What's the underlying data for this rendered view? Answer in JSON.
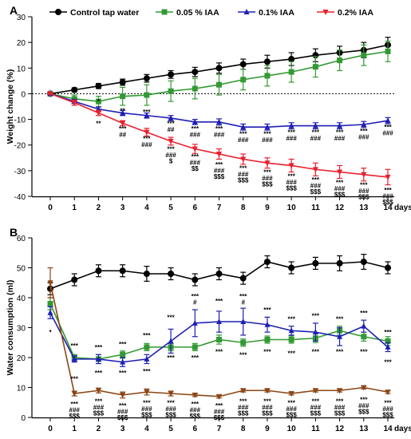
{
  "chart_data": [
    {
      "type": "line",
      "panel_label": "A",
      "title": "",
      "xlabel": "",
      "x_unit_label": "days",
      "ylabel": "Weight change (%)",
      "x": [
        0,
        1,
        2,
        3,
        4,
        5,
        6,
        7,
        8,
        9,
        10,
        11,
        12,
        13,
        14
      ],
      "xlim": [
        0,
        14
      ],
      "ylim": [
        -40,
        30
      ],
      "yticks": [
        -40,
        -30,
        -20,
        -10,
        0,
        10,
        20,
        30
      ],
      "zero_line": "dotted",
      "grid": false,
      "legend_position": "top",
      "series": [
        {
          "name": "Control tap water",
          "color": "#000000",
          "marker": "circle",
          "values": [
            0,
            1.5,
            3,
            4.5,
            6,
            7.5,
            8.5,
            10,
            11.5,
            12.5,
            13.5,
            15,
            16,
            17,
            19
          ],
          "errors": [
            0.5,
            0.8,
            1,
            1.2,
            1.5,
            1.5,
            1.8,
            2,
            2,
            2.5,
            2.5,
            2.5,
            2.5,
            3,
            3
          ]
        },
        {
          "name": "0.05 % IAA",
          "color": "#339933",
          "marker": "square",
          "values": [
            0,
            -2,
            -3,
            -1,
            -0.5,
            1,
            2,
            3.5,
            5.5,
            7,
            8.5,
            10.5,
            13,
            15,
            16.5
          ],
          "errors": [
            0.5,
            1.5,
            2,
            3.5,
            4,
            4,
            4,
            4,
            4,
            4,
            4,
            4,
            4,
            4,
            4
          ]
        },
        {
          "name": "0.1% IAA",
          "color": "#1f1fb4",
          "marker": "triangle",
          "values": [
            0,
            -3,
            -6,
            -7.5,
            -8.5,
            -9.5,
            -11,
            -11,
            -13,
            -13,
            -12.5,
            -12.5,
            -12.5,
            -12,
            -10.5
          ],
          "errors": [
            0.3,
            0.8,
            0.8,
            1,
            1,
            1,
            1,
            1.2,
            1.2,
            1.2,
            1.2,
            1.2,
            1.2,
            1.2,
            1.2
          ]
        },
        {
          "name": "0.2% IAA",
          "color": "#e8212f",
          "marker": "triangle-down",
          "values": [
            0,
            -3.5,
            -7.5,
            -11.5,
            -15,
            -18.5,
            -21.5,
            -23.5,
            -25.5,
            -27,
            -28,
            -29.5,
            -30.5,
            -31.5,
            -32.5
          ],
          "errors": [
            0.3,
            1,
            1,
            1,
            1.5,
            1.5,
            1.8,
            2,
            2,
            2,
            2.5,
            2.5,
            2.5,
            2.5,
            3
          ]
        }
      ],
      "annotations": [
        {
          "x": 2,
          "y": -3,
          "lines": [
            "*"
          ]
        },
        {
          "x": 2,
          "y": -11.5,
          "lines": [
            "**"
          ]
        },
        {
          "x": 3,
          "y": -6.5,
          "lines": [
            "**"
          ]
        },
        {
          "x": 3,
          "y": -13.5,
          "lines": [
            "***",
            "##"
          ]
        },
        {
          "x": 4,
          "y": -7,
          "lines": [
            "***"
          ]
        },
        {
          "x": 4,
          "y": -17.5,
          "lines": [
            "***",
            "###"
          ]
        },
        {
          "x": 5,
          "y": -11.5,
          "lines": [
            "***",
            "##"
          ]
        },
        {
          "x": 5,
          "y": -21.5,
          "lines": [
            "***",
            "###",
            "$"
          ]
        },
        {
          "x": 6,
          "y": -13.5,
          "lines": [
            "***",
            "###"
          ]
        },
        {
          "x": 6,
          "y": -24.5,
          "lines": [
            "***",
            "###",
            "$$"
          ]
        },
        {
          "x": 7,
          "y": -13.5,
          "lines": [
            "***",
            "###"
          ]
        },
        {
          "x": 7,
          "y": -27.5,
          "lines": [
            "***",
            "###",
            "$$$"
          ]
        },
        {
          "x": 8,
          "y": -15.5,
          "lines": [
            "***",
            "###"
          ]
        },
        {
          "x": 8,
          "y": -29,
          "lines": [
            "***",
            "###",
            "$$$"
          ]
        },
        {
          "x": 9,
          "y": -15.5,
          "lines": [
            "***",
            "###"
          ]
        },
        {
          "x": 9,
          "y": -30.5,
          "lines": [
            "***",
            "###",
            "$$$"
          ]
        },
        {
          "x": 10,
          "y": -15,
          "lines": [
            "***",
            "###"
          ]
        },
        {
          "x": 10,
          "y": -32,
          "lines": [
            "***",
            "###",
            "$$$"
          ]
        },
        {
          "x": 11,
          "y": -15,
          "lines": [
            "***",
            "###"
          ]
        },
        {
          "x": 11,
          "y": -33.5,
          "lines": [
            "***",
            "###",
            "$$$"
          ]
        },
        {
          "x": 12,
          "y": -15,
          "lines": [
            "***",
            "###"
          ]
        },
        {
          "x": 12,
          "y": -34.5,
          "lines": [
            "***",
            "###",
            "$$$"
          ]
        },
        {
          "x": 13,
          "y": -14.5,
          "lines": [
            "***",
            "###"
          ]
        },
        {
          "x": 13,
          "y": -35.5,
          "lines": [
            "***",
            "###",
            "$$$"
          ]
        },
        {
          "x": 14,
          "y": -13,
          "lines": [
            "***",
            "###"
          ]
        },
        {
          "x": 14,
          "y": -37.5,
          "lines": [
            "***",
            "###",
            "$$$"
          ]
        }
      ]
    },
    {
      "type": "line",
      "panel_label": "B",
      "title": "",
      "xlabel": "",
      "x_unit_label": "days",
      "ylabel": "Water consumption (ml)",
      "x": [
        0,
        1,
        2,
        3,
        4,
        5,
        6,
        7,
        8,
        9,
        10,
        11,
        12,
        13,
        14
      ],
      "xlim": [
        0,
        14
      ],
      "ylim": [
        0,
        60
      ],
      "yticks": [
        0,
        10,
        20,
        30,
        40,
        50,
        60
      ],
      "grid": false,
      "series": [
        {
          "name": "Control tap water",
          "color": "#000000",
          "marker": "circle",
          "values": [
            43,
            46,
            49,
            49,
            48,
            48,
            46,
            48,
            46.5,
            52,
            50,
            51.5,
            51.5,
            52,
            50
          ],
          "errors": [
            2,
            2,
            2,
            2,
            2.5,
            2,
            2,
            2,
            2,
            2,
            2,
            2,
            2.5,
            2.5,
            2
          ]
        },
        {
          "name": "0.05 % IAA",
          "color": "#339933",
          "marker": "square",
          "values": [
            38,
            20,
            19.5,
            21,
            23.5,
            23.5,
            23.5,
            26,
            25,
            26,
            26,
            26.5,
            29,
            27,
            25.5
          ],
          "errors": [
            2,
            1,
            1.5,
            1.2,
            1.2,
            1.2,
            1.2,
            1.5,
            1.2,
            1.2,
            1.2,
            1.5,
            1.5,
            1.5,
            1.5
          ]
        },
        {
          "name": "0.1% IAA",
          "color": "#1f1fb4",
          "marker": "triangle",
          "values": [
            35,
            19.5,
            19.5,
            18.5,
            19.5,
            25.5,
            31.5,
            32,
            32,
            31,
            29,
            28.5,
            27,
            30.5,
            23.5
          ],
          "errors": [
            2,
            1,
            1.5,
            1.5,
            1.5,
            4,
            4.5,
            3.5,
            4.5,
            2.5,
            1.5,
            3,
            3,
            2,
            1.5
          ]
        },
        {
          "name": "0.2% IAA",
          "color": "#8b4513",
          "marker": "triangle-down",
          "values": [
            45,
            8,
            9,
            7.5,
            8.5,
            8,
            7.5,
            7,
            9,
            9,
            8,
            9,
            9,
            10,
            8.5
          ],
          "errors": [
            5,
            0.8,
            0.8,
            1,
            1,
            0.8,
            0.5,
            0.5,
            0.5,
            0.5,
            0.5,
            0.5,
            0.5,
            0.5,
            0.5
          ]
        }
      ],
      "annotations": [
        {
          "x": 0,
          "y": 28.5,
          "lines": [
            "*"
          ]
        },
        {
          "x": 1,
          "y": 24,
          "lines": [
            "***"
          ]
        },
        {
          "x": 1,
          "y": 13,
          "lines": [
            "***"
          ]
        },
        {
          "x": 1,
          "y": 4.5,
          "lines": [
            "***",
            "###",
            "$$$"
          ]
        },
        {
          "x": 2,
          "y": 23.5,
          "lines": [
            "***"
          ]
        },
        {
          "x": 2,
          "y": 15,
          "lines": [
            "***"
          ]
        },
        {
          "x": 2,
          "y": 5.5,
          "lines": [
            "***",
            "###",
            "$$$"
          ]
        },
        {
          "x": 3,
          "y": 24.5,
          "lines": [
            "***"
          ]
        },
        {
          "x": 3,
          "y": 15,
          "lines": [
            "***"
          ]
        },
        {
          "x": 3,
          "y": 4,
          "lines": [
            "***",
            "###",
            "$$$"
          ]
        },
        {
          "x": 4,
          "y": 27.5,
          "lines": [
            "***"
          ]
        },
        {
          "x": 4,
          "y": 15.5,
          "lines": [
            "***"
          ]
        },
        {
          "x": 4,
          "y": 5,
          "lines": [
            "***",
            "###",
            "$$$"
          ]
        },
        {
          "x": 5,
          "y": 33.5,
          "lines": [
            "***"
          ]
        },
        {
          "x": 5,
          "y": 20,
          "lines": [
            "***"
          ]
        },
        {
          "x": 5,
          "y": 5,
          "lines": [
            "***",
            "###",
            "$$$"
          ]
        },
        {
          "x": 6,
          "y": 40.5,
          "lines": [
            "***",
            "#"
          ]
        },
        {
          "x": 6,
          "y": 20,
          "lines": [
            "***"
          ]
        },
        {
          "x": 6,
          "y": 4.5,
          "lines": [
            "***",
            "###",
            "$$$"
          ]
        },
        {
          "x": 7,
          "y": 39,
          "lines": [
            "***"
          ]
        },
        {
          "x": 7,
          "y": 22,
          "lines": [
            "***"
          ]
        },
        {
          "x": 7,
          "y": 4,
          "lines": [
            "***",
            "###",
            "$$$"
          ]
        },
        {
          "x": 8,
          "y": 40.5,
          "lines": [
            "***",
            "#"
          ]
        },
        {
          "x": 8,
          "y": 21,
          "lines": [
            "***"
          ]
        },
        {
          "x": 8,
          "y": 5.5,
          "lines": [
            "***",
            "###",
            "$$$"
          ]
        },
        {
          "x": 9,
          "y": 36,
          "lines": [
            "***"
          ]
        },
        {
          "x": 9,
          "y": 22,
          "lines": [
            "***"
          ]
        },
        {
          "x": 9,
          "y": 5.5,
          "lines": [
            "***",
            "###",
            "$$$"
          ]
        },
        {
          "x": 10,
          "y": 33,
          "lines": [
            "***"
          ]
        },
        {
          "x": 10,
          "y": 21.5,
          "lines": [
            "***"
          ]
        },
        {
          "x": 10,
          "y": 5,
          "lines": [
            "***",
            "###",
            "$$$"
          ]
        },
        {
          "x": 11,
          "y": 34,
          "lines": [
            "***"
          ]
        },
        {
          "x": 11,
          "y": 22,
          "lines": [
            "***"
          ]
        },
        {
          "x": 11,
          "y": 5.5,
          "lines": [
            "***",
            "###",
            "$$$"
          ]
        },
        {
          "x": 12,
          "y": 33,
          "lines": [
            "***"
          ]
        },
        {
          "x": 12,
          "y": 22,
          "lines": [
            "***"
          ]
        },
        {
          "x": 12,
          "y": 5.5,
          "lines": [
            "***",
            "###",
            "$$$"
          ]
        },
        {
          "x": 13,
          "y": 35,
          "lines": [
            "***"
          ]
        },
        {
          "x": 13,
          "y": 22,
          "lines": [
            "***"
          ]
        },
        {
          "x": 13,
          "y": 6,
          "lines": [
            "***",
            "###",
            "$$$"
          ]
        },
        {
          "x": 14,
          "y": 28.5,
          "lines": [
            "***"
          ]
        },
        {
          "x": 14,
          "y": 18.5,
          "lines": [
            "***"
          ]
        },
        {
          "x": 14,
          "y": 5,
          "lines": [
            "***",
            "###",
            "$$$"
          ]
        }
      ]
    }
  ]
}
